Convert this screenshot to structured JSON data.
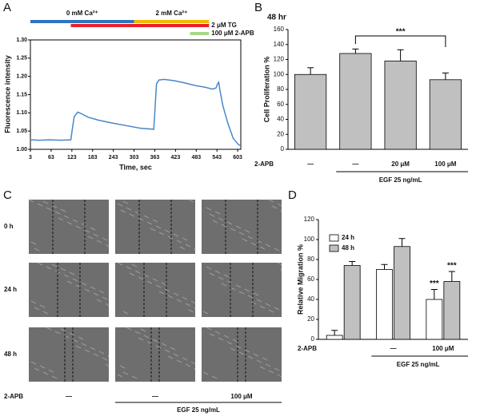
{
  "chart_data": [
    {
      "type": "line",
      "panel": "A",
      "x_label": "Time, sec",
      "y_label": "Fluorescence intensity",
      "color": "#4a86c8",
      "x": [
        3,
        30,
        60,
        90,
        120,
        125,
        130,
        140,
        150,
        170,
        200,
        240,
        280,
        320,
        360,
        363,
        368,
        375,
        390,
        420,
        450,
        480,
        510,
        530,
        540,
        545,
        548,
        552,
        560,
        575,
        590,
        605,
        612
      ],
      "values": [
        1.026,
        1.025,
        1.026,
        1.025,
        1.026,
        1.06,
        1.09,
        1.102,
        1.098,
        1.088,
        1.08,
        1.072,
        1.065,
        1.058,
        1.055,
        1.1,
        1.18,
        1.19,
        1.192,
        1.188,
        1.182,
        1.175,
        1.17,
        1.165,
        1.168,
        1.18,
        1.184,
        1.16,
        1.12,
        1.07,
        1.03,
        1.013,
        1.01
      ],
      "xlim": [
        3,
        612
      ],
      "xticks": [
        3,
        63,
        123,
        183,
        243,
        303,
        363,
        423,
        483,
        543,
        603
      ],
      "ylim": [
        1.0,
        1.3
      ],
      "yticks": [
        {
          "value": 1.0,
          "label": "1.00"
        },
        1.05,
        {
          "value": 1.1,
          "label": "1.10"
        },
        1.15,
        {
          "value": 1.2,
          "label": "1.20"
        },
        1.25,
        {
          "value": 1.3,
          "label": "1.30"
        }
      ],
      "bars": [
        {
          "label": "0 mM Ca²⁺",
          "color": "#2f74c0",
          "start": 3,
          "end": 303
        },
        {
          "label": "2 mM Ca²⁺",
          "color": "#f5b800",
          "start": 303,
          "end": 520
        },
        {
          "label": "2 μM TG",
          "color": "#e8202a",
          "start": 120,
          "end": 520
        },
        {
          "label": "100 μM 2-APB",
          "color": "#a7d88a",
          "start": 465,
          "end": 520
        }
      ]
    },
    {
      "type": "bar",
      "panel": "B",
      "title": "48 hr",
      "y_label": "Cell Proliferation %",
      "row_label": "2-APB",
      "group_label": "EGF 25 ng/mL",
      "categories": [
        "—",
        "—",
        "20 μM",
        "100 μM"
      ],
      "values": [
        100,
        128,
        118,
        93
      ],
      "errors": [
        9,
        6,
        15,
        9
      ],
      "color": "#c0c0c0",
      "annotation": "***",
      "ylim": [
        0,
        160
      ],
      "yticks": [
        0,
        20,
        40,
        60,
        80,
        100,
        120,
        140,
        160
      ]
    },
    {
      "type": "grouped_bar",
      "panel": "D",
      "y_label": "Relative Migration %",
      "row_label": "2-APB",
      "group_label": "EGF 25 ng/mL",
      "categories": [
        "",
        "—",
        "100 μM"
      ],
      "series": [
        {
          "name": "24 h",
          "color": "#ffffff",
          "values": [
            4,
            70,
            40
          ],
          "errors": [
            5,
            5,
            10
          ],
          "significance": [
            null,
            null,
            "***"
          ]
        },
        {
          "name": "48 h",
          "color": "#c0c0c0",
          "values": [
            74,
            93,
            58
          ],
          "errors": [
            4,
            8,
            10
          ],
          "significance": [
            null,
            null,
            "***"
          ]
        }
      ],
      "legend": "upper-left",
      "ylim": [
        0,
        120
      ],
      "yticks": [
        0,
        20,
        40,
        60,
        80,
        100,
        120
      ]
    }
  ],
  "panel_c": {
    "panel": "C",
    "rows": [
      "0 h",
      "24 h",
      "48 h"
    ],
    "row_label": "2-APB",
    "columns": [
      "—",
      "—",
      "100 μM"
    ],
    "group_label": "EGF 25 ng/mL"
  }
}
